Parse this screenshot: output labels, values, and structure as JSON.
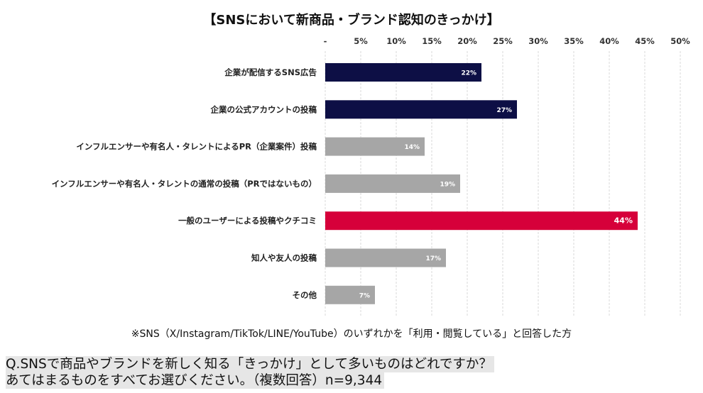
{
  "chart_data": {
    "type": "bar",
    "orientation": "horizontal",
    "title": "【SNSにおいて新商品・ブランド認知のきっかけ】",
    "xlim": [
      0,
      50
    ],
    "tick_labels": [
      "-",
      "5%",
      "10%",
      "15%",
      "20%",
      "25%",
      "30%",
      "35%",
      "40%",
      "45%",
      "50%"
    ],
    "categories": [
      "企業が配信するSNS広告",
      "企業の公式アカウントの投稿",
      "インフルエンサーや有名人・タレントによるPR（企業案件）投稿",
      "インフルエンサーや有名人・タレントの通常の投稿（PRではないもの）",
      "一般のユーザーによる投稿やクチコミ",
      "知人や友人の投稿",
      "その他"
    ],
    "values": [
      22,
      27,
      14,
      19,
      44,
      17,
      7
    ],
    "data_labels": [
      "22%",
      "27%",
      "14%",
      "19%",
      "44%",
      "17%",
      "7%"
    ],
    "bar_colors": [
      "#0d0f45",
      "#0d0f45",
      "#a6a6a6",
      "#a6a6a6",
      "#d6003a",
      "#a6a6a6",
      "#a6a6a6"
    ],
    "grid": true,
    "legend": "none"
  },
  "note": "※SNS（X/Instagram/TikTok/LINE/YouTube）のいずれかを「利用・閲覧している」と回答した方",
  "question": {
    "line1": "Q.SNSで商品やブランドを新しく知る「きっかけ」として多いものはどれですか？",
    "line2": "あてはまるものをすべてお選びください。（複数回答）n=9,344"
  }
}
